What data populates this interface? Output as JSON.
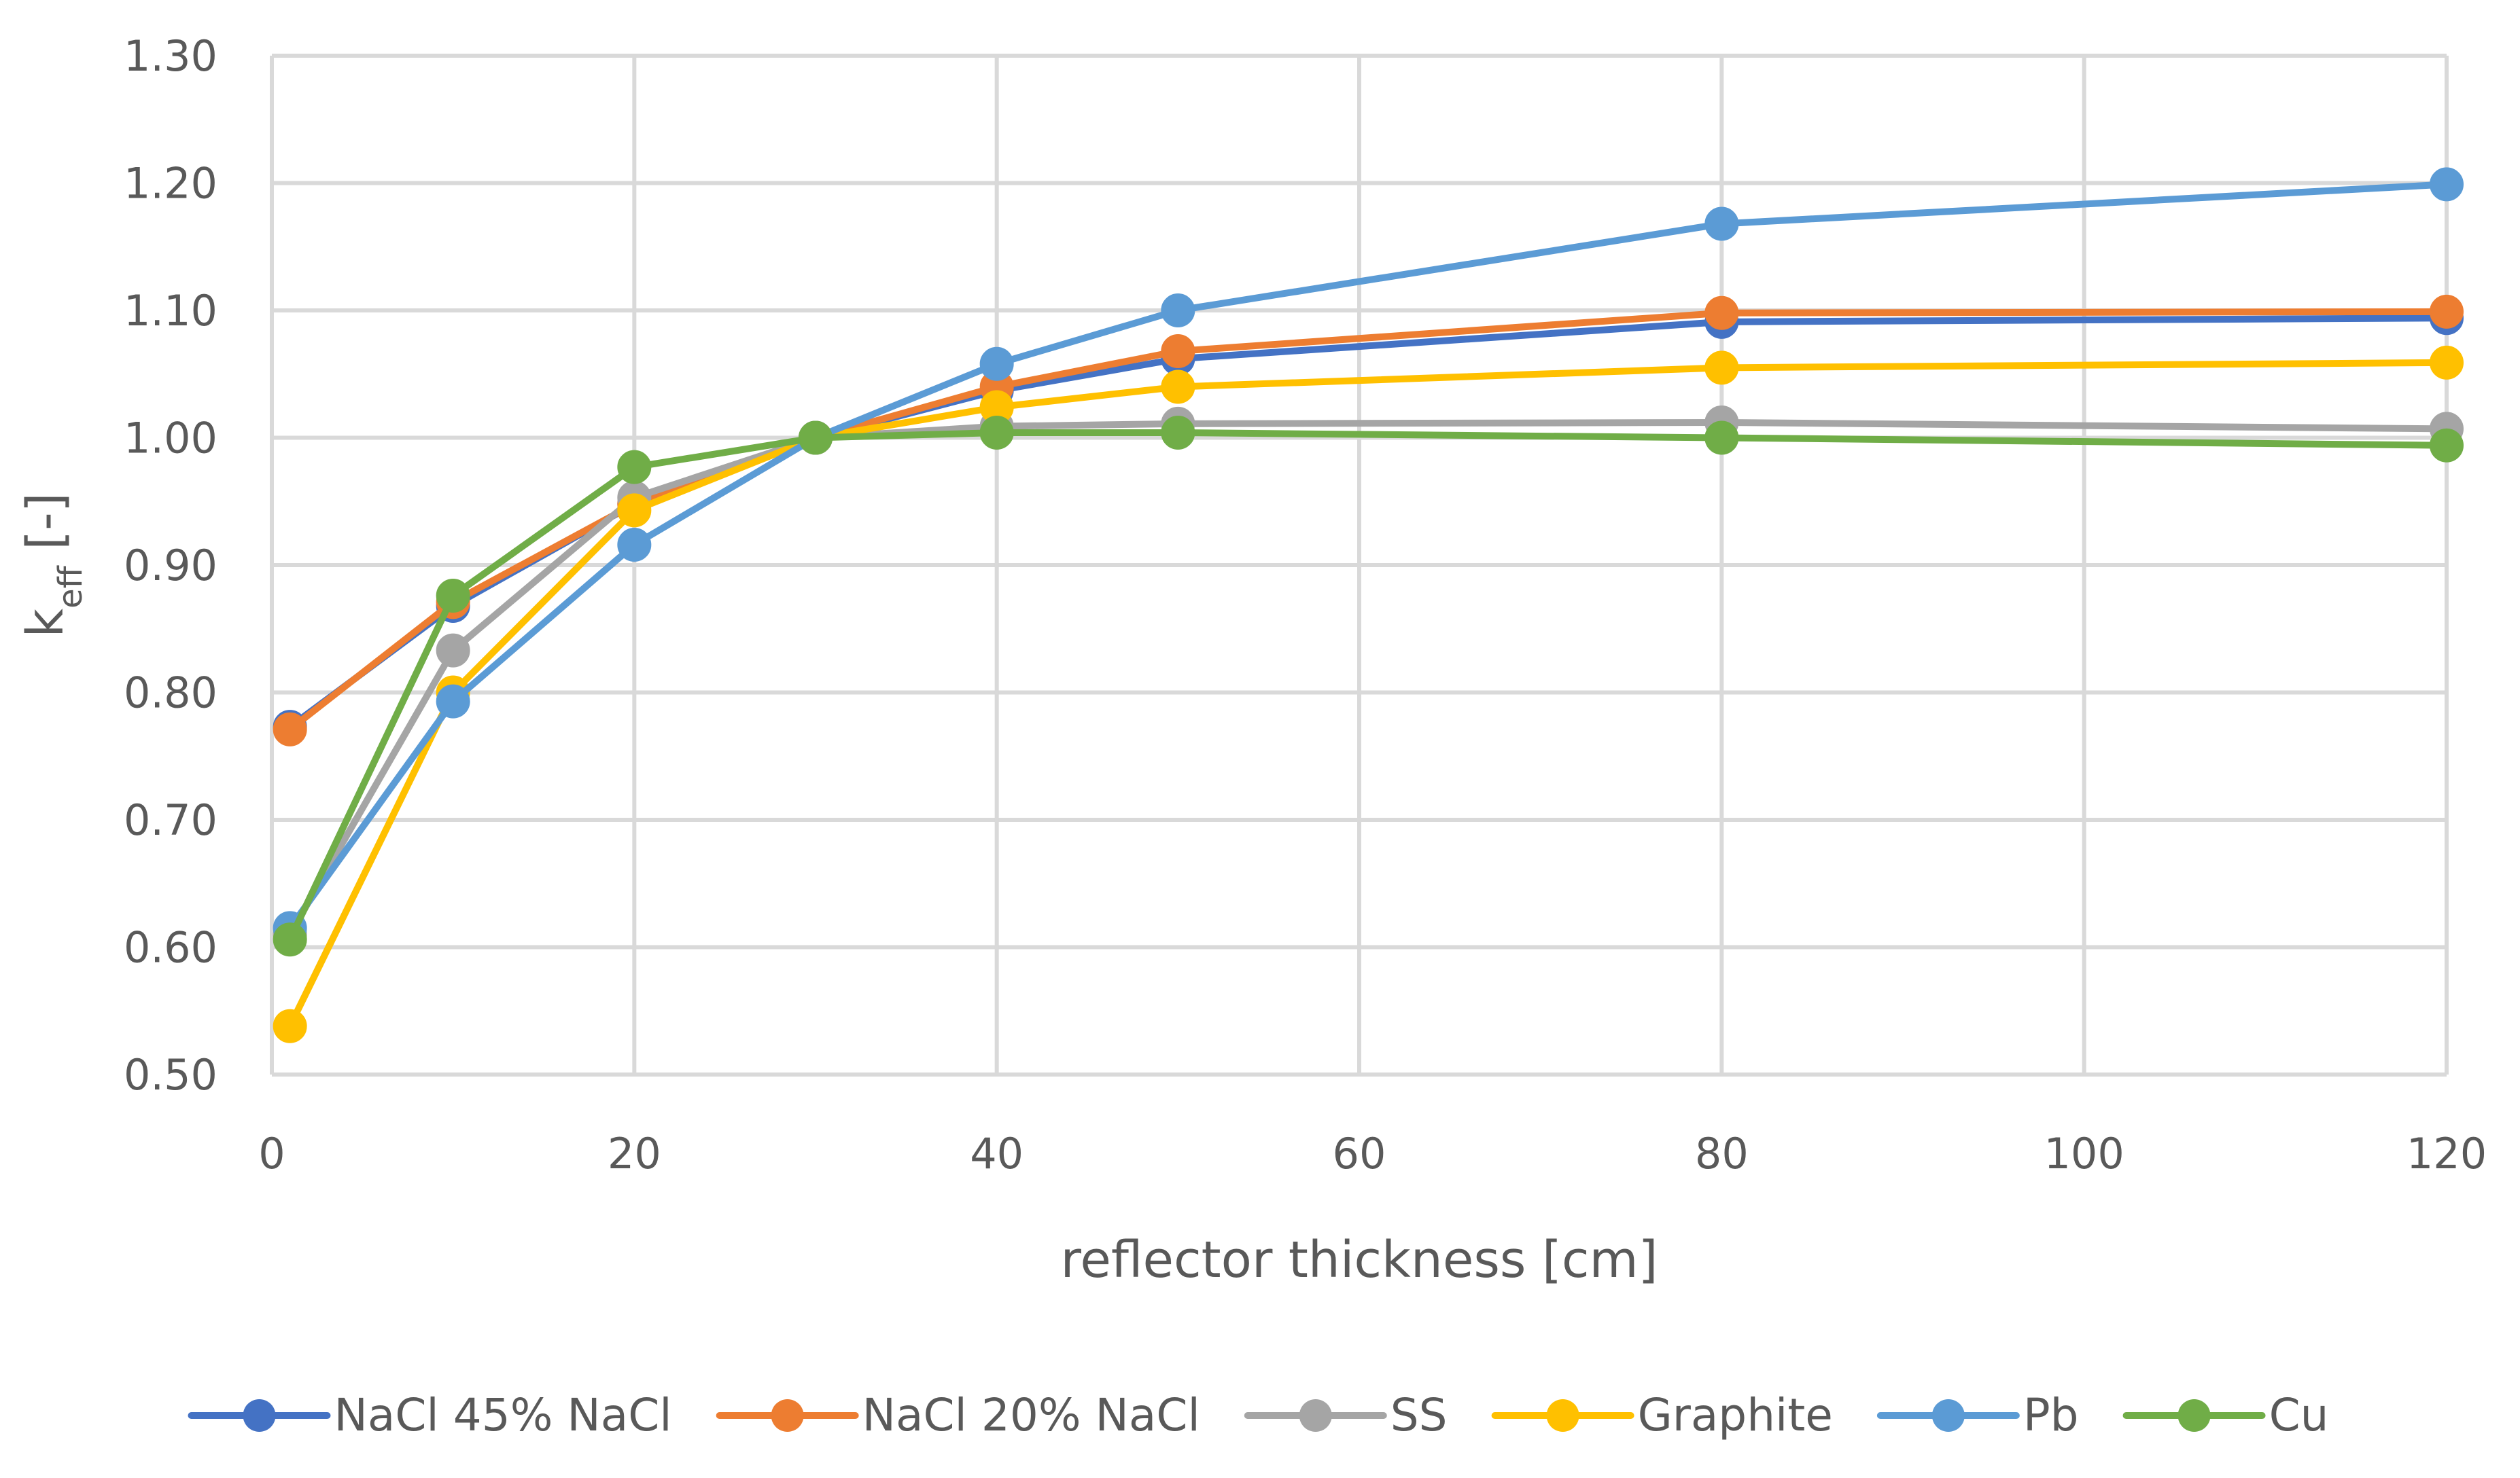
{
  "chart_data": {
    "type": "line",
    "title": "",
    "xlabel": "reflector thickness [cm]",
    "ylabel": {
      "base": "k",
      "subscript": "eff",
      "suffix": " [-]"
    },
    "xlim": [
      0,
      120
    ],
    "ylim": [
      0.5,
      1.3
    ],
    "x_ticks": [
      "0",
      "20",
      "40",
      "60",
      "80",
      "100",
      "120"
    ],
    "y_ticks": [
      "0.50",
      "0.60",
      "0.70",
      "0.80",
      "0.90",
      "1.00",
      "1.10",
      "1.20",
      "1.30"
    ],
    "x_tick_values": [
      0,
      20,
      40,
      60,
      80,
      100,
      120
    ],
    "y_tick_values": [
      0.5,
      0.6,
      0.7,
      0.8,
      0.9,
      1.0,
      1.1,
      1.2,
      1.3
    ],
    "grid": true,
    "legend_position": "bottom",
    "x": [
      1,
      10,
      20,
      30,
      40,
      50,
      80,
      120
    ],
    "series": [
      {
        "name": "NaCl 45% NaCl",
        "color": "#4472C4",
        "values": [
          0.773,
          0.868,
          0.948,
          1.0,
          1.037,
          1.062,
          1.091,
          1.094
        ]
      },
      {
        "name": "NaCl 20% NaCl",
        "color": "#ED7D31",
        "values": [
          0.771,
          0.871,
          0.948,
          1.0,
          1.04,
          1.068,
          1.098,
          1.099
        ]
      },
      {
        "name": "SS",
        "color": "#A5A5A5",
        "values": [
          0.61,
          0.833,
          0.953,
          1.0,
          1.009,
          1.011,
          1.012,
          1.007
        ]
      },
      {
        "name": "Graphite",
        "color": "#FFC000",
        "values": [
          0.538,
          0.8,
          0.943,
          1.0,
          1.024,
          1.04,
          1.055,
          1.059
        ]
      },
      {
        "name": "Pb",
        "color": "#5B9BD5",
        "values": [
          0.615,
          0.793,
          0.916,
          1.0,
          1.058,
          1.1,
          1.168,
          1.199
        ]
      },
      {
        "name": "Cu",
        "color": "#70AD47",
        "values": [
          0.606,
          0.876,
          0.977,
          1.0,
          1.004,
          1.004,
          1.0,
          0.994
        ]
      }
    ]
  }
}
